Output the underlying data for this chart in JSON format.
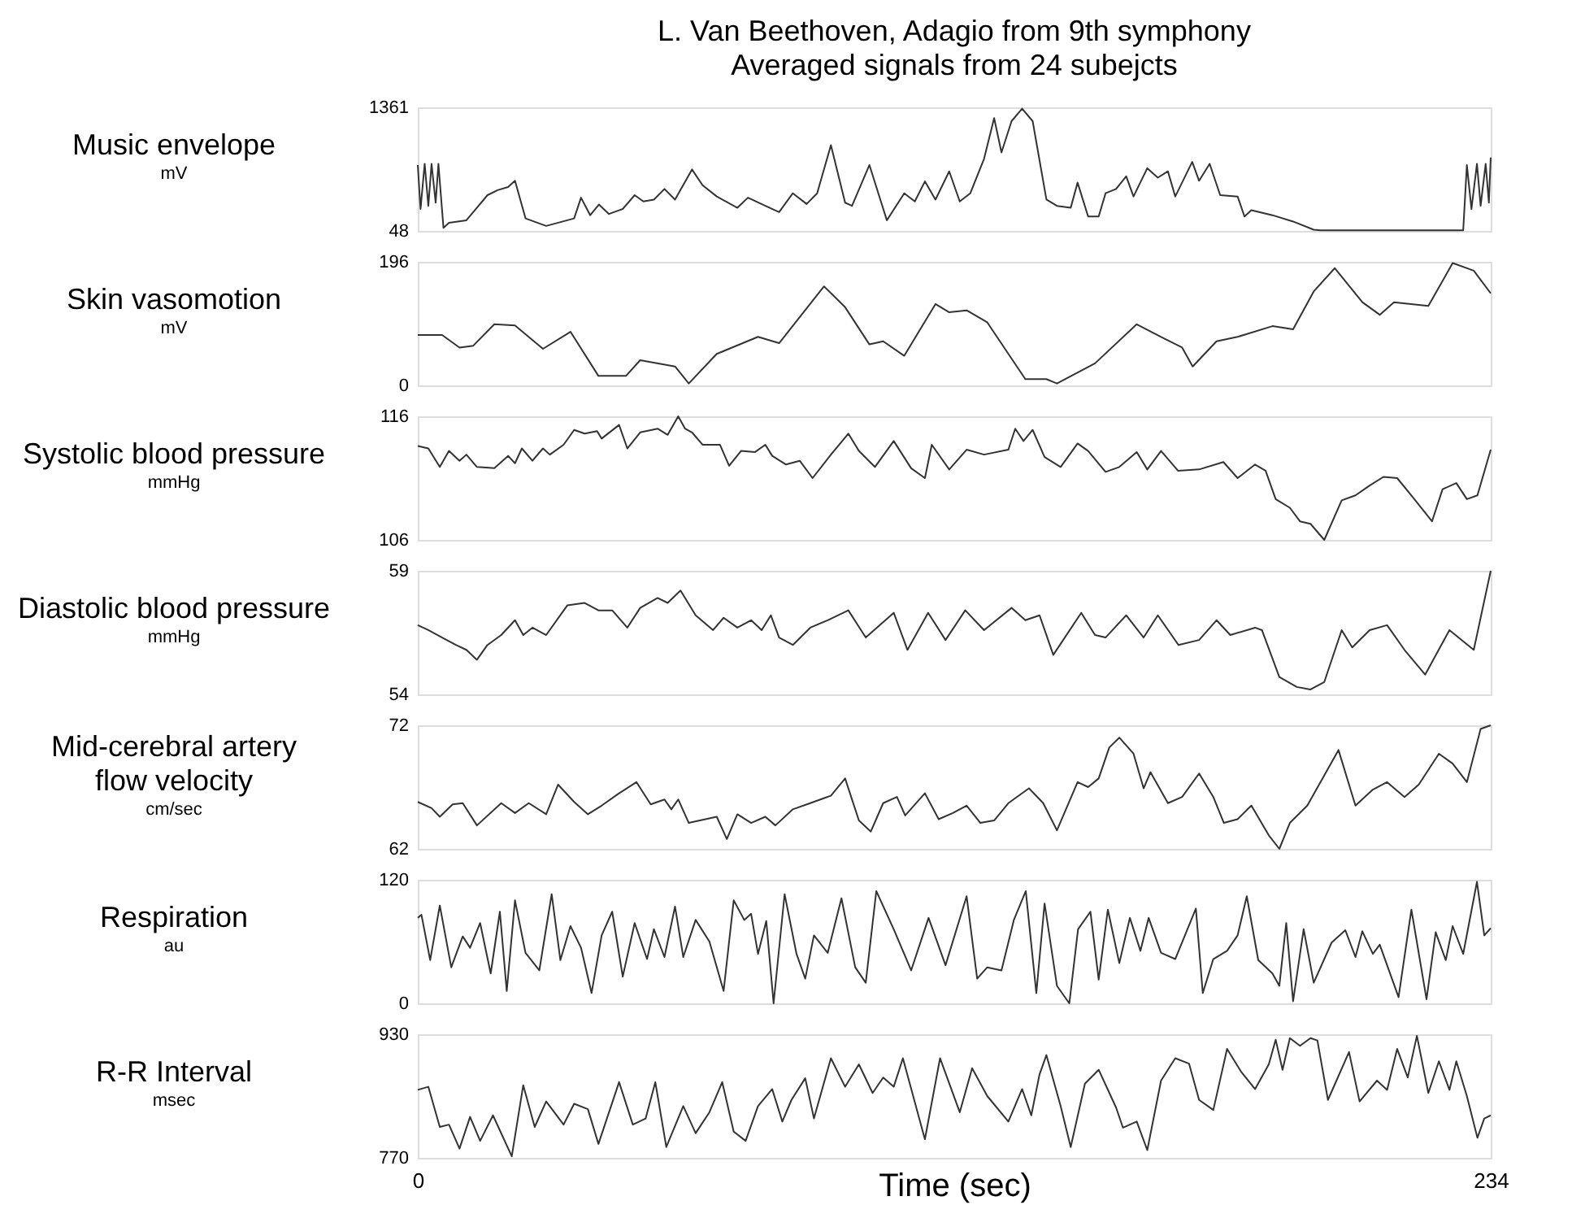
{
  "chart_data": [
    {
      "type": "line",
      "title": "L. Van Beethoven, Adagio from 9th symphony",
      "subtitle": "Averaged signals from 24 subejcts",
      "ylabel": "Music envelope",
      "annotations": [
        "mV"
      ],
      "xlim": [
        0,
        234
      ],
      "ylim": [
        48,
        1361
      ],
      "yticks": [
        48,
        1361
      ],
      "tick_labels": "y",
      "x": [
        0,
        0.6,
        1.5,
        2.3,
        3,
        3.9,
        4.5,
        5.6,
        6.8,
        10.6,
        15.2,
        17.4,
        19.7,
        21.2,
        23.5,
        28,
        34.1,
        35.6,
        37.6,
        39.5,
        41.7,
        44.7,
        47.3,
        49.2,
        51.5,
        53.8,
        56.1,
        59.8,
        62.1,
        65.2,
        69.7,
        72,
        75.8,
        78.8,
        81.8,
        84.8,
        87.1,
        90.1,
        93.2,
        94.7,
        98.5,
        102.3,
        106.1,
        108.4,
        110.6,
        112.9,
        115.9,
        118.2,
        120.5,
        123.5,
        125.7,
        127.3,
        129.5,
        131.8,
        134.1,
        137.1,
        139.4,
        142.4,
        143.9,
        146.2,
        148.5,
        150,
        152.3,
        154.5,
        156.1,
        159.1,
        161.4,
        163.6,
        165.2,
        168.9,
        170.4,
        172.7,
        175,
        178.8,
        180.3,
        181.8,
        186.4,
        190.9,
        195.4,
        196.9,
        228,
        228.8,
        229.8,
        231,
        231.8,
        232.9,
        233.6,
        234
      ],
      "series": [
        {
          "color": "#333333",
          "values": [
            748,
            281,
            761,
            314,
            761,
            348,
            761,
            81,
            135,
            161,
            428,
            481,
            514,
            581,
            181,
            101,
            181,
            401,
            215,
            328,
            228,
            281,
            428,
            361,
            381,
            494,
            381,
            701,
            534,
            414,
            294,
            401,
            314,
            248,
            448,
            334,
            448,
            960,
            348,
            314,
            748,
            161,
            448,
            361,
            574,
            381,
            681,
            361,
            448,
            814,
            1247,
            881,
            1214,
            1347,
            1214,
            381,
            314,
            294,
            561,
            201,
            201,
            448,
            494,
            628,
            414,
            714,
            614,
            681,
            414,
            781,
            581,
            761,
            428,
            414,
            201,
            268,
            215,
            148,
            61,
            55,
            55,
            748,
            281,
            761,
            314,
            761,
            348,
            828
          ]
        }
      ]
    },
    {
      "type": "line",
      "ylabel": "Skin vasomotion",
      "annotations": [
        "mV"
      ],
      "xlim": [
        0,
        234
      ],
      "ylim": [
        0,
        196
      ],
      "yticks": [
        0,
        196
      ],
      "tick_labels": "y",
      "x": [
        0,
        5.3,
        9.1,
        12.1,
        16.7,
        21.2,
        27.3,
        33.3,
        39.4,
        45.4,
        48.5,
        56.1,
        59.1,
        65.2,
        74.2,
        78.8,
        88.6,
        93.2,
        98.5,
        101.5,
        106.1,
        112.9,
        115.9,
        119.7,
        124.2,
        132.5,
        137.1,
        139.4,
        147.7,
        156.8,
        162.1,
        166.7,
        169,
        174.2,
        178.8,
        186.4,
        190.9,
        195.4,
        200,
        206,
        209.8,
        212.9,
        220.4,
        225.7,
        230.3,
        234
      ],
      "series": [
        {
          "color": "#333333",
          "values": [
            80,
            80,
            60,
            63,
            97,
            95,
            58,
            85,
            15,
            15,
            40,
            30,
            3,
            50,
            77,
            67,
            157,
            124,
            65,
            70,
            47,
            129,
            116,
            119,
            100,
            10,
            10,
            3,
            35,
            97,
            77,
            60,
            30,
            70,
            77,
            94,
            89,
            149,
            186,
            132,
            112,
            132,
            126,
            194,
            182,
            146
          ]
        }
      ]
    },
    {
      "type": "line",
      "ylabel": "Systolic blood pressure",
      "annotations": [
        "mmHg"
      ],
      "xlim": [
        0,
        234
      ],
      "ylim": [
        106,
        116
      ],
      "yticks": [
        106,
        116
      ],
      "tick_labels": "y",
      "x": [
        0,
        2.3,
        4.8,
        6.8,
        9.1,
        10.6,
        12.9,
        16.7,
        19.7,
        21.2,
        22.7,
        25,
        27.3,
        28.8,
        31.8,
        34.1,
        36.4,
        39.1,
        40.1,
        43.9,
        45.7,
        48.5,
        52.3,
        54.5,
        56.8,
        58.3,
        59.8,
        62.1,
        65.9,
        67.9,
        70.5,
        73.5,
        75.8,
        77.3,
        80.3,
        83.3,
        86.1,
        90.1,
        93.9,
        96.2,
        99.7,
        103.8,
        107.6,
        110.6,
        112.1,
        115.9,
        119.7,
        123.5,
        128.8,
        130.3,
        132.1,
        134.1,
        136.7,
        140.2,
        143.9,
        146.2,
        150,
        153,
        156.8,
        159.1,
        162.1,
        165.8,
        170.4,
        175.7,
        178.8,
        182.6,
        184.9,
        187.1,
        190.2,
        192.4,
        194.7,
        197.7,
        201.5,
        204.5,
        207.6,
        210.6,
        213.6,
        216.7,
        221.2,
        223.5,
        226.5,
        228.8,
        231.1,
        234
      ],
      "series": [
        {
          "color": "#333333",
          "values": [
            113.6,
            113.4,
            111.9,
            113.2,
            112.4,
            112.9,
            111.9,
            111.8,
            112.8,
            112.2,
            113.4,
            112.4,
            113.4,
            112.9,
            113.7,
            114.9,
            114.6,
            114.8,
            114.2,
            115.3,
            113.4,
            114.7,
            115.0,
            114.5,
            116,
            115.0,
            114.7,
            113.7,
            113.7,
            112.0,
            113.2,
            113.1,
            113.7,
            112.8,
            112.1,
            112.4,
            111.0,
            112.9,
            114.6,
            113.2,
            111.9,
            114.0,
            111.8,
            111.0,
            113.7,
            111.7,
            113.3,
            112.9,
            113.3,
            115.0,
            114.0,
            114.9,
            112.7,
            111.9,
            113.8,
            113.2,
            111.5,
            111.9,
            113.1,
            111.7,
            113.2,
            111.6,
            111.7,
            112.3,
            111.0,
            112.1,
            111.6,
            109.3,
            108.6,
            107.5,
            107.3,
            106,
            109.2,
            109.6,
            110.4,
            111.1,
            111.0,
            109.6,
            107.5,
            110.1,
            110.6,
            109.3,
            109.6,
            113.3
          ]
        }
      ]
    },
    {
      "type": "line",
      "ylabel": "Diastolic blood pressure",
      "annotations": [
        "mmHg"
      ],
      "xlim": [
        0,
        234
      ],
      "ylim": [
        54,
        59
      ],
      "yticks": [
        54,
        59
      ],
      "tick_labels": "y",
      "x": [
        0,
        2.3,
        5.3,
        8.3,
        10.6,
        12.9,
        15.2,
        18.2,
        21.2,
        23,
        25,
        28,
        32.6,
        36.4,
        39.4,
        42.4,
        45.7,
        48.5,
        52.3,
        54.5,
        57.3,
        60.6,
        64.4,
        66.7,
        69.7,
        72.7,
        75,
        77,
        78.8,
        81.8,
        85.6,
        89.4,
        93.9,
        97.7,
        103.8,
        106.8,
        111.3,
        115.1,
        119.4,
        123.5,
        129.5,
        132.5,
        135.6,
        138.6,
        144.7,
        147.7,
        150,
        154.5,
        158.3,
        161.4,
        165.9,
        170.4,
        174.2,
        177.2,
        182.6,
        184.1,
        187.9,
        191.7,
        194.7,
        197.7,
        201.5,
        203.8,
        207.6,
        211.4,
        215.2,
        219.7,
        225,
        230.3,
        234
      ],
      "series": [
        {
          "color": "#333333",
          "values": [
            56.8,
            56.6,
            56.3,
            56.0,
            55.8,
            55.4,
            56.0,
            56.4,
            57.0,
            56.4,
            56.7,
            56.4,
            57.6,
            57.7,
            57.4,
            57.4,
            56.7,
            57.5,
            57.9,
            57.7,
            58.2,
            57.2,
            56.6,
            57.1,
            56.7,
            57.0,
            56.6,
            57.2,
            56.3,
            56.0,
            56.7,
            57.0,
            57.4,
            56.3,
            57.3,
            55.8,
            57.3,
            56.2,
            57.4,
            56.6,
            57.5,
            57.0,
            57.2,
            55.6,
            57.3,
            56.4,
            56.3,
            57.2,
            56.3,
            57.2,
            56.0,
            56.2,
            57.0,
            56.4,
            56.7,
            56.6,
            54.7,
            54.3,
            54.2,
            54.5,
            56.6,
            55.9,
            56.6,
            56.8,
            55.8,
            54.8,
            56.6,
            55.8,
            59.0
          ]
        }
      ]
    },
    {
      "type": "line",
      "ylabel": "Mid-cerebral artery\nflow velocity",
      "annotations": [
        "cm/sec"
      ],
      "xlim": [
        0,
        234
      ],
      "ylim": [
        62,
        72
      ],
      "yticks": [
        62,
        72
      ],
      "tick_labels": "y",
      "x": [
        0,
        3,
        4.8,
        7.6,
        9.8,
        12.9,
        18.2,
        21.2,
        24.2,
        28,
        30.6,
        34.1,
        37.1,
        40.1,
        43.9,
        47.7,
        50.8,
        53.8,
        55.3,
        56.8,
        59.1,
        65.2,
        67.4,
        69.7,
        72.7,
        75.8,
        78,
        81.8,
        85.6,
        90.1,
        93.2,
        96.2,
        98.8,
        101.5,
        104.5,
        106.3,
        110.6,
        113.6,
        116.7,
        119.7,
        122.7,
        125.7,
        128.8,
        133.3,
        136.4,
        139.4,
        143.9,
        146.2,
        148.5,
        150.8,
        153,
        156.1,
        158.3,
        159.8,
        163.6,
        166.7,
        170.4,
        173.5,
        175.8,
        178.8,
        181.8,
        185.6,
        187.9,
        190.2,
        194,
        200.8,
        204.5,
        208.3,
        211.4,
        215.2,
        218.3,
        222.7,
        225.7,
        228.8,
        231.8,
        234
      ],
      "series": [
        {
          "color": "#333333",
          "values": [
            65.8,
            65.3,
            64.6,
            65.6,
            65.7,
            63.9,
            65.7,
            64.9,
            65.7,
            64.8,
            67.2,
            65.8,
            64.8,
            65.5,
            66.5,
            67.4,
            65.6,
            66.0,
            65.2,
            66.0,
            64.1,
            64.6,
            62.8,
            64.8,
            64.1,
            64.6,
            63.9,
            65.2,
            65.7,
            66.3,
            67.7,
            64.3,
            63.4,
            65.7,
            66.2,
            64.7,
            66.5,
            64.4,
            64.9,
            65.5,
            64.1,
            64.3,
            65.7,
            66.9,
            65.7,
            63.5,
            67.4,
            67.0,
            67.7,
            70.2,
            71.0,
            69.7,
            66.9,
            68.2,
            65.7,
            66.2,
            68.1,
            66.2,
            64.1,
            64.4,
            65.5,
            63.1,
            62,
            64.1,
            65.5,
            70.0,
            65.5,
            66.8,
            67.4,
            66.2,
            67.2,
            69.7,
            68.9,
            67.4,
            71.7,
            72
          ]
        }
      ]
    },
    {
      "type": "line",
      "ylabel": "Respiration",
      "annotations": [
        "au"
      ],
      "xlim": [
        0,
        234
      ],
      "ylim": [
        0,
        120
      ],
      "yticks": [
        0,
        120
      ],
      "tick_labels": "y",
      "x": [
        0,
        0.8,
        2.7,
        4.8,
        7.3,
        9.8,
        11.4,
        13.6,
        15.9,
        17.9,
        19.4,
        21.2,
        23.5,
        26.5,
        29.2,
        31.1,
        33.3,
        35.6,
        37.9,
        40.1,
        42.4,
        44.7,
        47.3,
        50,
        51.5,
        53.8,
        56.1,
        57.9,
        60.6,
        63.6,
        66.7,
        68.9,
        71.2,
        72.7,
        74.2,
        76,
        77.6,
        80,
        82.6,
        84.5,
        86.4,
        89.4,
        92.4,
        95.4,
        97.7,
        100,
        103.8,
        107.6,
        111.4,
        115.1,
        119.7,
        122,
        124.2,
        127.3,
        130,
        132.6,
        134.9,
        136.7,
        139.4,
        142.1,
        144,
        146.7,
        148.5,
        150.5,
        153,
        155.3,
        157.6,
        159.4,
        162.1,
        165.2,
        169.7,
        171.2,
        173.5,
        176.5,
        178.8,
        180.8,
        183.3,
        186.4,
        187.9,
        189.4,
        190.9,
        193.2,
        195.4,
        199.3,
        202.3,
        204.5,
        206,
        208.3,
        209.8,
        213.9,
        216.7,
        220,
        222,
        224.2,
        225.7,
        228,
        231,
        232.6,
        234
      ],
      "series": [
        {
          "color": "#333333",
          "values": [
            83,
            86,
            42,
            95,
            35,
            65,
            54,
            78,
            29,
            89,
            12,
            100,
            49,
            32,
            106,
            42,
            75,
            54,
            10,
            66,
            89,
            26,
            78,
            43,
            72,
            45,
            94,
            45,
            81,
            60,
            12,
            100,
            81,
            87,
            48,
            80,
            0,
            106,
            48,
            24,
            66,
            49,
            102,
            35,
            20,
            109,
            72,
            32,
            83,
            37,
            104,
            24,
            35,
            32,
            81,
            109,
            10,
            97,
            17,
            0,
            72,
            89,
            23,
            91,
            39,
            83,
            51,
            83,
            49,
            43,
            92,
            10,
            43,
            51,
            66,
            104,
            42,
            29,
            17,
            78,
            2,
            72,
            20,
            59,
            71,
            45,
            70,
            48,
            57,
            6,
            91,
            4,
            69,
            42,
            75,
            48,
            118,
            66,
            73
          ]
        }
      ]
    },
    {
      "type": "line",
      "ylabel": "R-R Interval",
      "annotations": [
        "msec"
      ],
      "xlabel": "Time (sec)",
      "xlim": [
        0,
        234
      ],
      "xticks": [
        0,
        234
      ],
      "ylim": [
        770,
        930
      ],
      "yticks": [
        770,
        930
      ],
      "x": [
        0,
        2.3,
        4.8,
        6.8,
        9.1,
        11.4,
        13.6,
        16.4,
        20.5,
        23,
        25.5,
        28,
        31.8,
        34.1,
        37.1,
        39.4,
        43.9,
        46.9,
        49.7,
        51.8,
        54.2,
        57.9,
        60.6,
        63.6,
        66.4,
        68.9,
        71.5,
        74.2,
        77.3,
        79.5,
        81.5,
        84.5,
        86.4,
        90.1,
        93.2,
        96.2,
        99.2,
        101.5,
        103.8,
        105.8,
        110.6,
        113.9,
        118.2,
        120.9,
        124.2,
        128.8,
        131.8,
        133.8,
        135.6,
        137.1,
        140.2,
        142.4,
        145.5,
        148.5,
        152.3,
        153.8,
        156.8,
        159.1,
        162.1,
        165.2,
        168.2,
        170.4,
        173.5,
        176.5,
        179.5,
        182.6,
        185.6,
        187.1,
        188.6,
        190.2,
        192.4,
        194.7,
        196.2,
        198.5,
        203.1,
        205.4,
        209.2,
        211.4,
        213.6,
        215.9,
        217.9,
        220.4,
        222.7,
        225,
        226.5,
        228.8,
        231.1,
        232.6,
        234
      ],
      "series": [
        {
          "color": "#333333",
          "values": [
            858,
            862,
            810,
            813,
            782,
            823,
            792,
            825,
            772,
            864,
            810,
            843,
            813,
            840,
            833,
            788,
            868,
            813,
            821,
            868,
            784,
            837,
            802,
            829,
            868,
            804,
            792,
            837,
            859,
            817,
            845,
            873,
            821,
            899,
            862,
            891,
            854,
            874,
            862,
            899,
            794,
            899,
            829,
            886,
            850,
            817,
            859,
            825,
            878,
            903,
            837,
            784,
            866,
            884,
            835,
            809,
            817,
            780,
            870,
            899,
            892,
            845,
            832,
            911,
            882,
            859,
            891,
            923,
            884,
            925,
            915,
            925,
            922,
            845,
            907,
            843,
            870,
            858,
            911,
            874,
            928,
            854,
            895,
            858,
            895,
            850,
            796,
            821,
            825
          ]
        }
      ]
    }
  ]
}
